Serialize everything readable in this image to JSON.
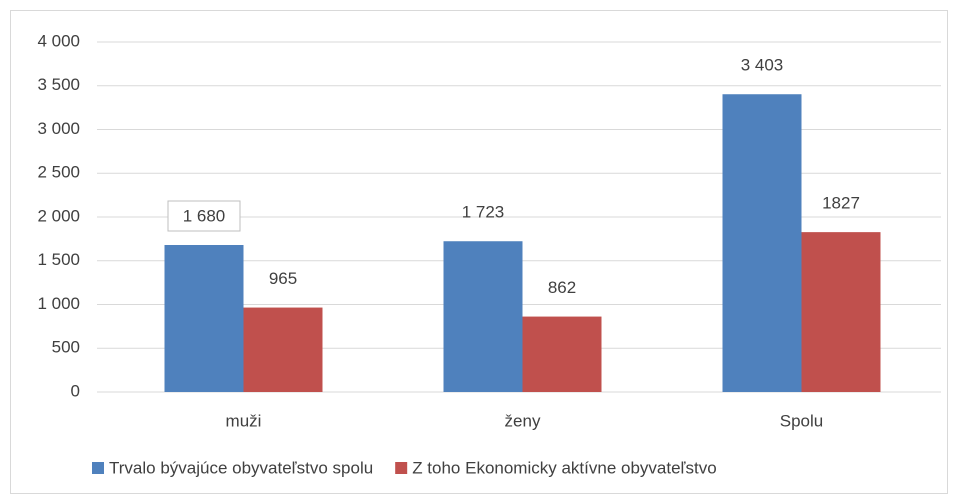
{
  "chart_data": {
    "type": "bar",
    "categories": [
      "muži",
      "ženy",
      "Spolu"
    ],
    "series": [
      {
        "name": "Trvalo bývajúce obyvateľstvo spolu",
        "color": "#4f81bd",
        "values": [
          1680,
          1723,
          3403
        ],
        "value_labels": [
          "1 680",
          "1 723",
          "3 403"
        ]
      },
      {
        "name": "Z toho Ekonomicky aktívne obyvateľstvo",
        "color": "#c0504d",
        "values": [
          965,
          862,
          1827
        ]
      }
    ],
    "ylim": [
      0,
      4000
    ],
    "yticks": [
      0,
      500,
      {
        "value": 1000,
        "label": "1 000"
      },
      {
        "value": 1500,
        "label": "1 500"
      },
      {
        "value": 2000,
        "label": "2 000"
      },
      {
        "value": 2500,
        "label": "2 500"
      },
      {
        "value": 3000,
        "label": "3 000"
      },
      {
        "value": 3500,
        "label": "3 500"
      },
      {
        "value": 4000,
        "label": "4 000"
      }
    ],
    "grid": true,
    "legend": "bottom"
  }
}
